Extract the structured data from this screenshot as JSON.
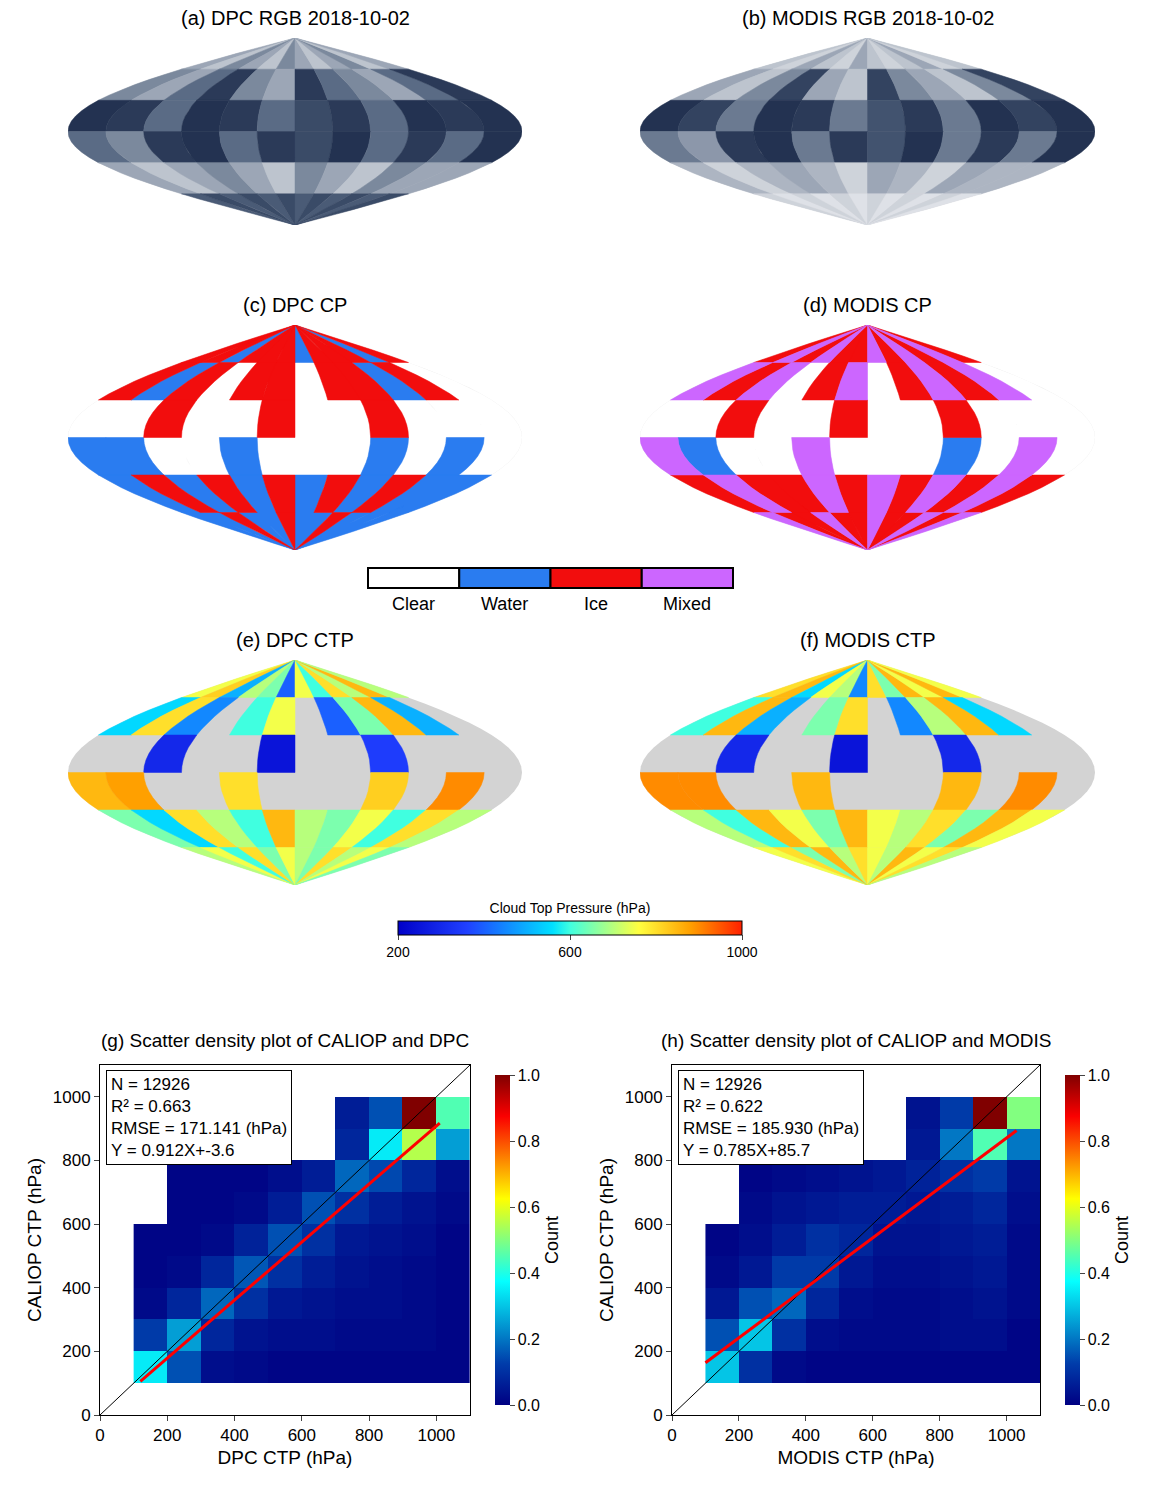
{
  "chart_data": [
    {
      "type": "image",
      "title": "(a) DPC RGB 2018-10-02",
      "lon_edges": [
        -180,
        -150,
        -120,
        -90,
        -60,
        -30,
        0,
        30,
        60,
        90,
        120,
        150,
        180
      ],
      "lat_edges": [
        90,
        60,
        30,
        0,
        -30,
        -60,
        -90
      ],
      "cells": [
        [
          0.7,
          0.8,
          0.6,
          0.7,
          0.8,
          0.6,
          0.7,
          0.8,
          0.7,
          0.6,
          0.8,
          0.7
        ],
        [
          0.6,
          0.7,
          0.5,
          0.2,
          0.6,
          0.7,
          0.2,
          0.5,
          0.6,
          0.7,
          0.5,
          0.2
        ],
        [
          0.15,
          0.2,
          0.5,
          0.15,
          0.2,
          0.5,
          0.3,
          0.2,
          0.5,
          0.15,
          0.2,
          0.15
        ],
        [
          0.5,
          0.6,
          0.2,
          0.15,
          0.5,
          0.2,
          0.3,
          0.15,
          0.5,
          0.2,
          0.5,
          0.15
        ],
        [
          0.7,
          0.8,
          0.7,
          0.6,
          0.7,
          0.8,
          0.6,
          0.7,
          0.8,
          0.6,
          0.7,
          0.7
        ],
        [
          0.4,
          0.3,
          0.4,
          0.3,
          0.4,
          0.3,
          0.4,
          0.3,
          0.4,
          0.3,
          0.4,
          0.3
        ]
      ]
    },
    {
      "type": "image",
      "title": "(b) MODIS RGB 2018-10-02",
      "lon_edges": [
        -180,
        -150,
        -120,
        -90,
        -60,
        -30,
        0,
        30,
        60,
        90,
        120,
        150,
        180
      ],
      "lat_edges": [
        90,
        60,
        30,
        0,
        -30,
        -60,
        -90
      ],
      "cells": [
        [
          0.8,
          0.85,
          0.7,
          0.8,
          0.85,
          0.7,
          0.8,
          0.85,
          0.8,
          0.7,
          0.85,
          0.8
        ],
        [
          0.7,
          0.8,
          0.6,
          0.25,
          0.7,
          0.8,
          0.25,
          0.6,
          0.7,
          0.8,
          0.6,
          0.25
        ],
        [
          0.15,
          0.25,
          0.55,
          0.15,
          0.2,
          0.55,
          0.35,
          0.2,
          0.55,
          0.15,
          0.25,
          0.15
        ],
        [
          0.55,
          0.65,
          0.2,
          0.15,
          0.55,
          0.2,
          0.35,
          0.15,
          0.55,
          0.2,
          0.55,
          0.15
        ],
        [
          0.75,
          0.85,
          0.75,
          0.7,
          0.75,
          0.85,
          0.7,
          0.75,
          0.85,
          0.7,
          0.75,
          0.75
        ],
        [
          0.85,
          0.9,
          0.85,
          0.9,
          0.85,
          0.9,
          0.85,
          0.9,
          0.85,
          0.9,
          0.85,
          0.9
        ]
      ]
    },
    {
      "type": "classmap",
      "title": "(c) DPC CP",
      "lon_edges": [
        -180,
        -150,
        -120,
        -90,
        -60,
        -30,
        0,
        30,
        60,
        90,
        120,
        150,
        180
      ],
      "lat_edges": [
        90,
        60,
        30,
        0,
        -30,
        -60,
        -90
      ],
      "cells": [
        [
          2,
          2,
          1,
          2,
          2,
          2,
          1,
          2,
          2,
          2,
          1,
          2
        ],
        [
          2,
          1,
          2,
          0,
          2,
          2,
          0,
          2,
          2,
          1,
          2,
          0
        ],
        [
          0,
          0,
          2,
          0,
          0,
          2,
          0,
          0,
          2,
          0,
          0,
          0
        ],
        [
          1,
          1,
          0,
          0,
          1,
          0,
          0,
          0,
          1,
          0,
          1,
          0
        ],
        [
          1,
          2,
          1,
          2,
          1,
          2,
          1,
          2,
          1,
          2,
          1,
          1
        ],
        [
          1,
          1,
          2,
          1,
          1,
          2,
          1,
          1,
          2,
          1,
          1,
          1
        ]
      ]
    },
    {
      "type": "classmap",
      "title": "(d) MODIS CP",
      "lon_edges": [
        -180,
        -150,
        -120,
        -90,
        -60,
        -30,
        0,
        30,
        60,
        90,
        120,
        150,
        180
      ],
      "lat_edges": [
        90,
        60,
        30,
        0,
        -30,
        -60,
        -90
      ],
      "cells": [
        [
          2,
          3,
          2,
          3,
          2,
          2,
          3,
          2,
          3,
          2,
          3,
          2
        ],
        [
          3,
          2,
          3,
          0,
          2,
          3,
          0,
          2,
          3,
          2,
          3,
          0
        ],
        [
          0,
          0,
          2,
          0,
          0,
          2,
          0,
          0,
          2,
          0,
          0,
          0
        ],
        [
          3,
          1,
          0,
          0,
          3,
          0,
          0,
          0,
          1,
          0,
          3,
          0
        ],
        [
          2,
          3,
          2,
          2,
          3,
          2,
          3,
          2,
          3,
          2,
          3,
          2
        ],
        [
          3,
          2,
          2,
          3,
          2,
          2,
          3,
          2,
          2,
          3,
          2,
          3
        ]
      ]
    },
    {
      "type": "legend",
      "categories": [
        "Clear",
        "Water",
        "Ice",
        "Mixed"
      ],
      "colors": [
        "#ffffff",
        "#2a7cf0",
        "#f20d0d",
        "#cc66ff"
      ]
    },
    {
      "type": "valuemap",
      "title": "(e) DPC CTP",
      "lon_edges": [
        -180,
        -150,
        -120,
        -90,
        -60,
        -30,
        0,
        30,
        60,
        90,
        120,
        150,
        180
      ],
      "lat_edges": [
        90,
        60,
        30,
        0,
        -30,
        -60,
        -90
      ],
      "cells": [
        [
          750,
          820,
          500,
          700,
          650,
          400,
          750,
          600,
          800,
          700,
          850,
          700
        ],
        [
          550,
          800,
          450,
          null,
          600,
          750,
          null,
          400,
          650,
          850,
          500,
          null
        ],
        [
          null,
          null,
          300,
          null,
          null,
          250,
          null,
          null,
          350,
          null,
          null,
          null
        ],
        [
          850,
          880,
          null,
          null,
          800,
          null,
          null,
          null,
          820,
          null,
          900,
          null
        ],
        [
          650,
          550,
          800,
          700,
          600,
          850,
          700,
          650,
          750,
          600,
          800,
          700
        ],
        [
          700,
          750,
          600,
          800,
          650,
          750,
          700,
          650,
          800,
          700,
          750,
          650
        ]
      ]
    },
    {
      "type": "valuemap",
      "title": "(f) MODIS CTP",
      "lon_edges": [
        -180,
        -150,
        -120,
        -90,
        -60,
        -30,
        0,
        30,
        60,
        90,
        120,
        150,
        180
      ],
      "lat_edges": [
        90,
        60,
        30,
        0,
        -30,
        -60,
        -90
      ],
      "cells": [
        [
          800,
          850,
          550,
          750,
          700,
          450,
          800,
          650,
          850,
          750,
          850,
          750
        ],
        [
          600,
          850,
          500,
          null,
          650,
          800,
          null,
          450,
          700,
          850,
          550,
          null
        ],
        [
          null,
          null,
          300,
          null,
          null,
          250,
          null,
          null,
          300,
          null,
          null,
          null
        ],
        [
          900,
          900,
          null,
          null,
          850,
          null,
          null,
          null,
          850,
          null,
          900,
          null
        ],
        [
          700,
          600,
          850,
          750,
          650,
          850,
          750,
          700,
          800,
          650,
          850,
          750
        ],
        [
          750,
          800,
          650,
          850,
          700,
          800,
          750,
          700,
          850,
          750,
          800,
          700
        ]
      ]
    },
    {
      "type": "colorbar",
      "title": "Cloud Top Pressure (hPa)",
      "range": [
        200,
        1000
      ],
      "ticks": [
        200,
        600,
        1000
      ]
    },
    {
      "type": "density",
      "title": "(g) Scatter density plot of CALIOP and DPC",
      "x_label": "DPC CTP (hPa)",
      "y_label": "CALIOP CTP (hPa)",
      "xlim": [
        0,
        1100
      ],
      "ylim": [
        0,
        1100
      ],
      "xticks": [
        0,
        200,
        400,
        600,
        800,
        1000
      ],
      "yticks": [
        0,
        200,
        400,
        600,
        800,
        1000
      ],
      "x_edges": [
        100,
        200,
        300,
        400,
        500,
        600,
        700,
        800,
        900,
        1000,
        1100
      ],
      "y_edges": [
        100,
        200,
        300,
        400,
        500,
        600,
        700,
        800,
        900,
        1000,
        1100
      ],
      "cells": [
        [
          0.35,
          0.15,
          0.03,
          0.02,
          0.01,
          0.01,
          0.01,
          0.01,
          0.01,
          0.01
        ],
        [
          0.12,
          0.25,
          0.08,
          0.04,
          0.03,
          0.03,
          0.02,
          0.02,
          0.02,
          0.01
        ],
        [
          0.02,
          0.08,
          0.18,
          0.1,
          0.05,
          0.04,
          0.03,
          0.03,
          0.02,
          0.01
        ],
        [
          0.01,
          0.02,
          0.08,
          0.16,
          0.1,
          0.06,
          0.04,
          0.03,
          0.02,
          0.01
        ],
        [
          0.01,
          0.01,
          0.02,
          0.07,
          0.15,
          0.1,
          0.05,
          0.04,
          0.03,
          0.01
        ],
        [
          null,
          0.01,
          0.01,
          0.02,
          0.06,
          0.15,
          0.1,
          0.06,
          0.04,
          0.02
        ],
        [
          null,
          0.01,
          0.01,
          0.01,
          0.03,
          0.06,
          0.18,
          0.14,
          0.08,
          0.03
        ],
        [
          null,
          null,
          null,
          null,
          null,
          null,
          0.08,
          0.35,
          0.55,
          0.25
        ],
        [
          null,
          null,
          null,
          null,
          null,
          null,
          0.06,
          0.15,
          1.0,
          0.45
        ],
        [
          null,
          null,
          null,
          null,
          null,
          null,
          null,
          null,
          null,
          null
        ]
      ],
      "colorbar": {
        "title": "Count",
        "range": [
          0,
          1
        ],
        "ticks": [
          {
            "value": 0,
            "label": "0.0"
          },
          0.2,
          0.4,
          0.6,
          0.8,
          {
            "value": 1,
            "label": "1.0"
          }
        ]
      },
      "annotations": [
        "N = 12926",
        "R² = 0.663",
        "RMSE = 171.141 (hPa)",
        "Y = 0.912X+-3.6"
      ],
      "fit": {
        "slope": 0.912,
        "intercept": -3.6,
        "x": [
          120,
          1010
        ],
        "color": "#ff0000"
      }
    },
    {
      "type": "density",
      "title": "(h) Scatter density plot of CALIOP and MODIS",
      "x_label": "MODIS CTP (hPa)",
      "y_label": "CALIOP CTP (hPa)",
      "xlim": [
        0,
        1100
      ],
      "ylim": [
        0,
        1100
      ],
      "xticks": [
        0,
        200,
        400,
        600,
        800,
        1000
      ],
      "yticks": [
        0,
        200,
        400,
        600,
        800,
        1000
      ],
      "x_edges": [
        100,
        200,
        300,
        400,
        500,
        600,
        700,
        800,
        900,
        1000,
        1100
      ],
      "y_edges": [
        100,
        200,
        300,
        400,
        500,
        600,
        700,
        800,
        900,
        1000,
        1100
      ],
      "cells": [
        [
          0.3,
          0.1,
          0.02,
          0.01,
          0.01,
          0.01,
          0.01,
          0.01,
          0.01,
          0.01
        ],
        [
          0.15,
          0.3,
          0.1,
          0.03,
          0.02,
          0.02,
          0.02,
          0.03,
          0.03,
          0.01
        ],
        [
          0.05,
          0.15,
          0.18,
          0.08,
          0.03,
          0.02,
          0.02,
          0.03,
          0.04,
          0.02
        ],
        [
          0.02,
          0.05,
          0.12,
          0.12,
          0.05,
          0.03,
          0.03,
          0.04,
          0.05,
          0.02
        ],
        [
          0.01,
          0.03,
          0.06,
          0.1,
          0.08,
          0.04,
          0.04,
          0.05,
          0.06,
          0.02
        ],
        [
          null,
          0.02,
          0.04,
          0.05,
          0.06,
          0.06,
          0.05,
          0.06,
          0.08,
          0.03
        ],
        [
          null,
          0.01,
          0.02,
          0.03,
          0.04,
          0.05,
          0.07,
          0.1,
          0.12,
          0.04
        ],
        [
          null,
          null,
          null,
          null,
          null,
          null,
          0.05,
          0.2,
          0.45,
          0.2
        ],
        [
          null,
          null,
          null,
          null,
          null,
          null,
          0.04,
          0.12,
          1.0,
          0.5
        ],
        [
          null,
          null,
          null,
          null,
          null,
          null,
          null,
          null,
          null,
          null
        ]
      ],
      "colorbar": {
        "title": "Count",
        "range": [
          0,
          1
        ],
        "ticks": [
          {
            "value": 0,
            "label": "0.0"
          },
          0.2,
          0.4,
          0.6,
          0.8,
          {
            "value": 1,
            "label": "1.0"
          }
        ]
      },
      "annotations": [
        "N = 12926",
        "R² = 0.622",
        "RMSE = 185.930 (hPa)",
        "Y = 0.785X+85.7"
      ],
      "fit": {
        "slope": 0.785,
        "intercept": 85.7,
        "x": [
          100,
          1030
        ],
        "color": "#ff0000"
      }
    }
  ]
}
